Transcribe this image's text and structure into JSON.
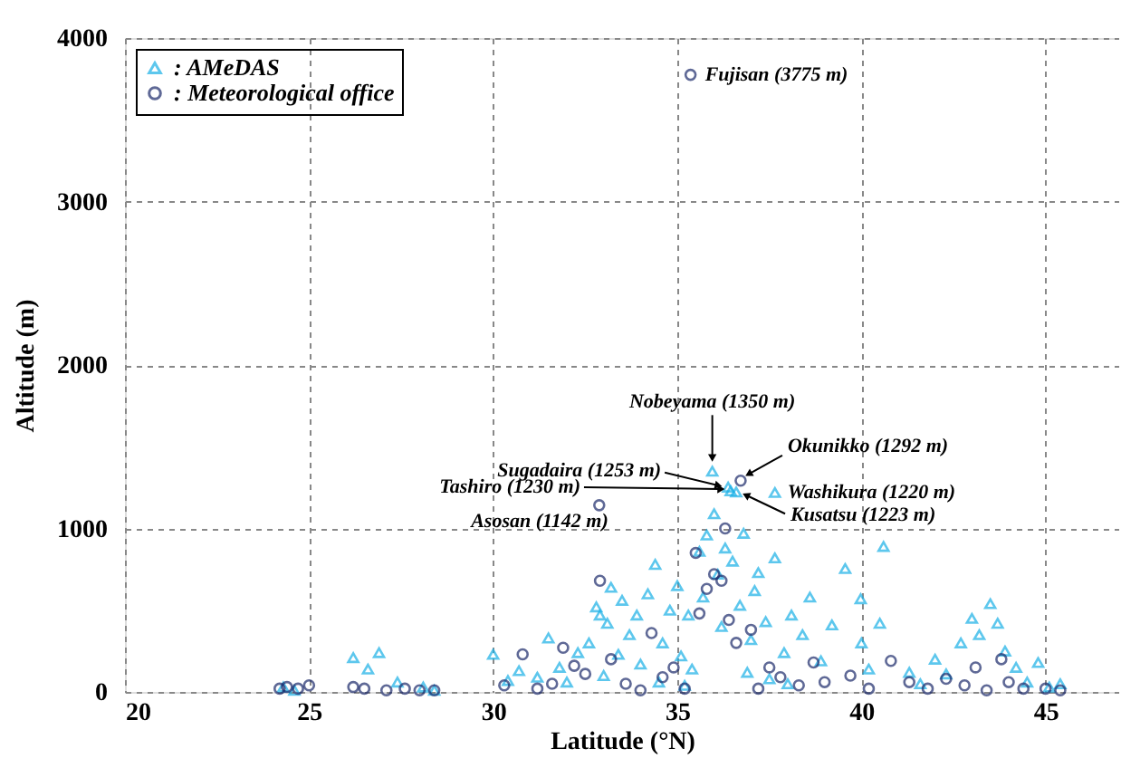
{
  "chart_data": {
    "type": "scatter",
    "xlabel": "Latitude (°N)",
    "ylabel": "Altitude (m)",
    "xlim": [
      20,
      47
    ],
    "ylim": [
      0,
      4000
    ],
    "xticks": [
      20,
      25,
      30,
      35,
      40,
      45
    ],
    "yticks": [
      0,
      1000,
      2000,
      3000,
      4000
    ],
    "grid": true,
    "legend": "top left",
    "series": [
      {
        "name": ": AMeDAS",
        "color": "#1ab0e6",
        "marker": "triangle",
        "x": [
          24.3,
          24.6,
          26.2,
          26.6,
          26.9,
          27.4,
          28.1,
          28.4,
          30.0,
          30.4,
          30.7,
          31.2,
          31.5,
          31.8,
          32.0,
          32.3,
          32.6,
          32.8,
          32.9,
          33.0,
          33.1,
          33.2,
          33.4,
          33.5,
          33.7,
          33.9,
          34.0,
          34.2,
          34.4,
          34.5,
          34.6,
          34.8,
          35.0,
          35.1,
          35.2,
          35.3,
          35.4,
          35.6,
          35.7,
          35.8,
          35.95,
          36.0,
          36.1,
          36.2,
          36.3,
          36.38,
          36.45,
          36.5,
          36.6,
          36.7,
          36.8,
          36.9,
          37.0,
          37.1,
          37.2,
          37.4,
          37.5,
          37.65,
          37.65,
          37.9,
          38.0,
          38.1,
          38.4,
          38.6,
          38.9,
          39.2,
          39.56,
          39.98,
          40.0,
          40.2,
          40.5,
          40.6,
          41.3,
          41.6,
          42.0,
          42.3,
          42.7,
          43.0,
          43.2,
          43.5,
          43.7,
          43.9,
          44.2,
          44.5,
          44.8,
          45.1,
          45.4
        ],
        "values": [
          30,
          10,
          210,
          140,
          240,
          60,
          30,
          10,
          230,
          70,
          130,
          90,
          330,
          150,
          60,
          240,
          300,
          520,
          470,
          100,
          420,
          640,
          230,
          560,
          350,
          470,
          170,
          600,
          780,
          60,
          300,
          500,
          650,
          220,
          40,
          470,
          140,
          860,
          580,
          960,
          1350,
          1090,
          720,
          400,
          880,
          1253,
          1230,
          800,
          1223,
          530,
          970,
          120,
          320,
          620,
          730,
          430,
          80,
          1220,
          820,
          240,
          50,
          470,
          350,
          580,
          190,
          410,
          755,
          570,
          300,
          140,
          420,
          890,
          120,
          50,
          200,
          110,
          300,
          450,
          350,
          540,
          420,
          250,
          150,
          60,
          180,
          30,
          50
        ]
      },
      {
        "name": ": Meteorological office",
        "color": "#1c2a6b",
        "marker": "circle",
        "x": [
          24.2,
          24.4,
          24.7,
          25.0,
          26.2,
          26.5,
          27.1,
          27.6,
          28.0,
          28.4,
          30.3,
          30.8,
          31.2,
          31.6,
          31.9,
          32.2,
          32.5,
          32.88,
          32.9,
          33.2,
          33.6,
          34.0,
          34.3,
          34.6,
          34.9,
          35.2,
          35.36,
          35.5,
          35.6,
          35.8,
          36.0,
          36.2,
          36.3,
          36.4,
          36.6,
          36.72,
          37.0,
          37.2,
          37.5,
          37.8,
          38.3,
          38.7,
          39.0,
          39.7,
          40.2,
          40.8,
          41.3,
          41.8,
          42.3,
          42.8,
          43.1,
          43.4,
          43.8,
          44.0,
          44.4,
          45.0,
          45.4
        ],
        "values": [
          20,
          30,
          20,
          40,
          30,
          20,
          10,
          20,
          10,
          10,
          40,
          230,
          20,
          50,
          270,
          160,
          110,
          1142,
          680,
          200,
          50,
          10,
          360,
          90,
          150,
          20,
          3775,
          850,
          480,
          630,
          720,
          680,
          1000,
          440,
          300,
          1292,
          380,
          20,
          150,
          90,
          40,
          180,
          60,
          100,
          20,
          190,
          60,
          20,
          80,
          40,
          150,
          10,
          200,
          60,
          20,
          20,
          10
        ]
      }
    ],
    "annotations": [
      {
        "text": "Fujisan (3775 m)",
        "x": 35.36,
        "y": 3775
      },
      {
        "text": "Nobeyama (1350 m)",
        "x": 35.95,
        "y": 1350
      },
      {
        "text": "Okunikko (1292 m)",
        "x": 36.72,
        "y": 1292
      },
      {
        "text": "Sugadaira (1253 m)",
        "x": 36.38,
        "y": 1253
      },
      {
        "text": "Tashiro (1230 m)",
        "x": 36.45,
        "y": 1230
      },
      {
        "text": "Washikura (1220 m)",
        "x": 37.65,
        "y": 1220
      },
      {
        "text": "Kusatsu (1223 m)",
        "x": 36.6,
        "y": 1223
      },
      {
        "text": "Asosan (1142 m)",
        "x": 32.88,
        "y": 1142
      }
    ]
  }
}
